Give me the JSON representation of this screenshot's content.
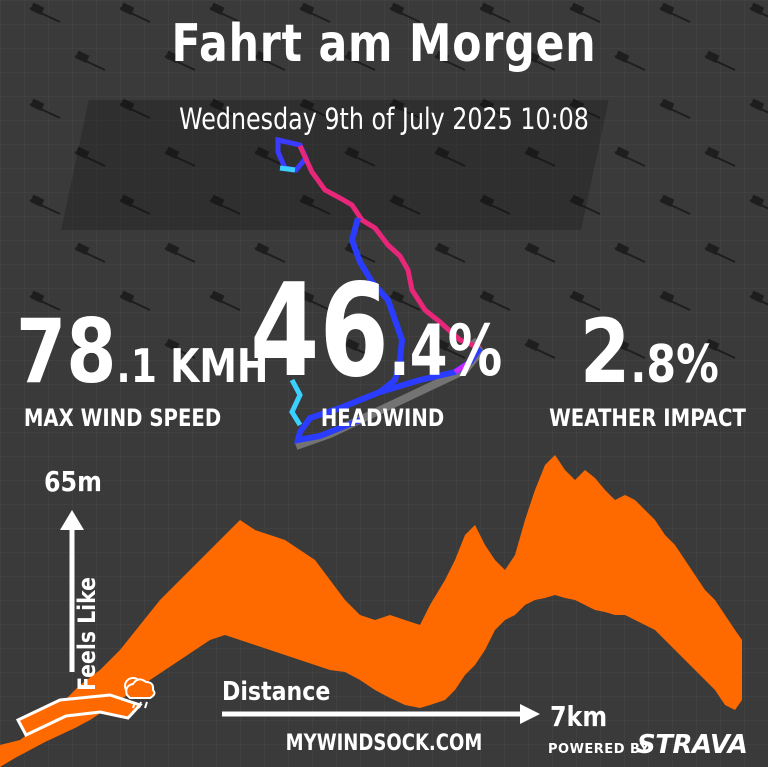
{
  "header": {
    "title": "Fahrt am Morgen",
    "subtitle": "Wednesday 9th of July 2025 10:08"
  },
  "stats": {
    "max_wind": {
      "value": "78",
      "decimal": ".1",
      "unit": " KMH",
      "label": "MAX WIND SPEED"
    },
    "headwind": {
      "value": "46",
      "decimal": ".4%",
      "label": "HEADWIND"
    },
    "weather": {
      "value": "2",
      "decimal": ".8%",
      "label": "WEATHER IMPACT"
    }
  },
  "chart": {
    "y_axis_label": "Feels Like",
    "y_max_label": "65m",
    "x_axis_label": "Distance",
    "x_max_label": "7km"
  },
  "footer": {
    "site": "MYWINDSOCK.COM",
    "powered_by": "POWERED BY",
    "brand": "STRAVA"
  },
  "colors": {
    "background": "#3a3a3a",
    "accent_orange": "#ff6a00",
    "route_blue": "#2a3cff",
    "route_magenta": "#ff2a8a",
    "route_cyan": "#3ad0ff"
  },
  "icons": [
    "wind-flag-icon",
    "route-map-icon",
    "weather-cloud-icon",
    "logo-ribbon-icon"
  ]
}
